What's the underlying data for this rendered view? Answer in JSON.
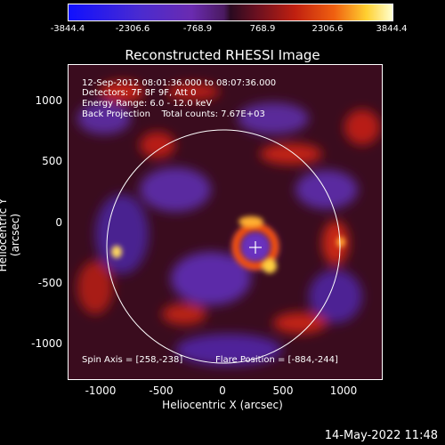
{
  "colorbar": {
    "ticks": [
      "-3844.4",
      "-2306.6",
      "-768.9",
      "768.9",
      "2306.6",
      "3844.4"
    ],
    "colors": [
      "#1010ff",
      "#6a2bb0",
      "#2a0a20",
      "#c02010",
      "#ffd030",
      "#ffffd0"
    ]
  },
  "title": "Reconstructed RHESSI Image",
  "info": {
    "line1": "12-Sep-2012 08:01:36.000 to 08:07:36.000",
    "line2": "Detectors: 7F 8F 9F, Att 0",
    "line3": "Energy Range: 6.0 - 12.0 keV",
    "line4": "Back Projection    Total counts: 7.67E+03"
  },
  "bottom_info": {
    "spin_axis": "Spin Axis = [258,-238]",
    "flare_position": "Flare Position = [-884,-244]"
  },
  "axes": {
    "xlabel": "Heliocentric X (arcsec)",
    "ylabel": "Heliocentric Y (arcsec)",
    "x_ticks": [
      "-1000",
      "-500",
      "0",
      "500",
      "1000"
    ],
    "y_ticks": [
      "1000",
      "500",
      "0",
      "-500",
      "-1000"
    ]
  },
  "footer": "14-May-2022 11:48"
}
